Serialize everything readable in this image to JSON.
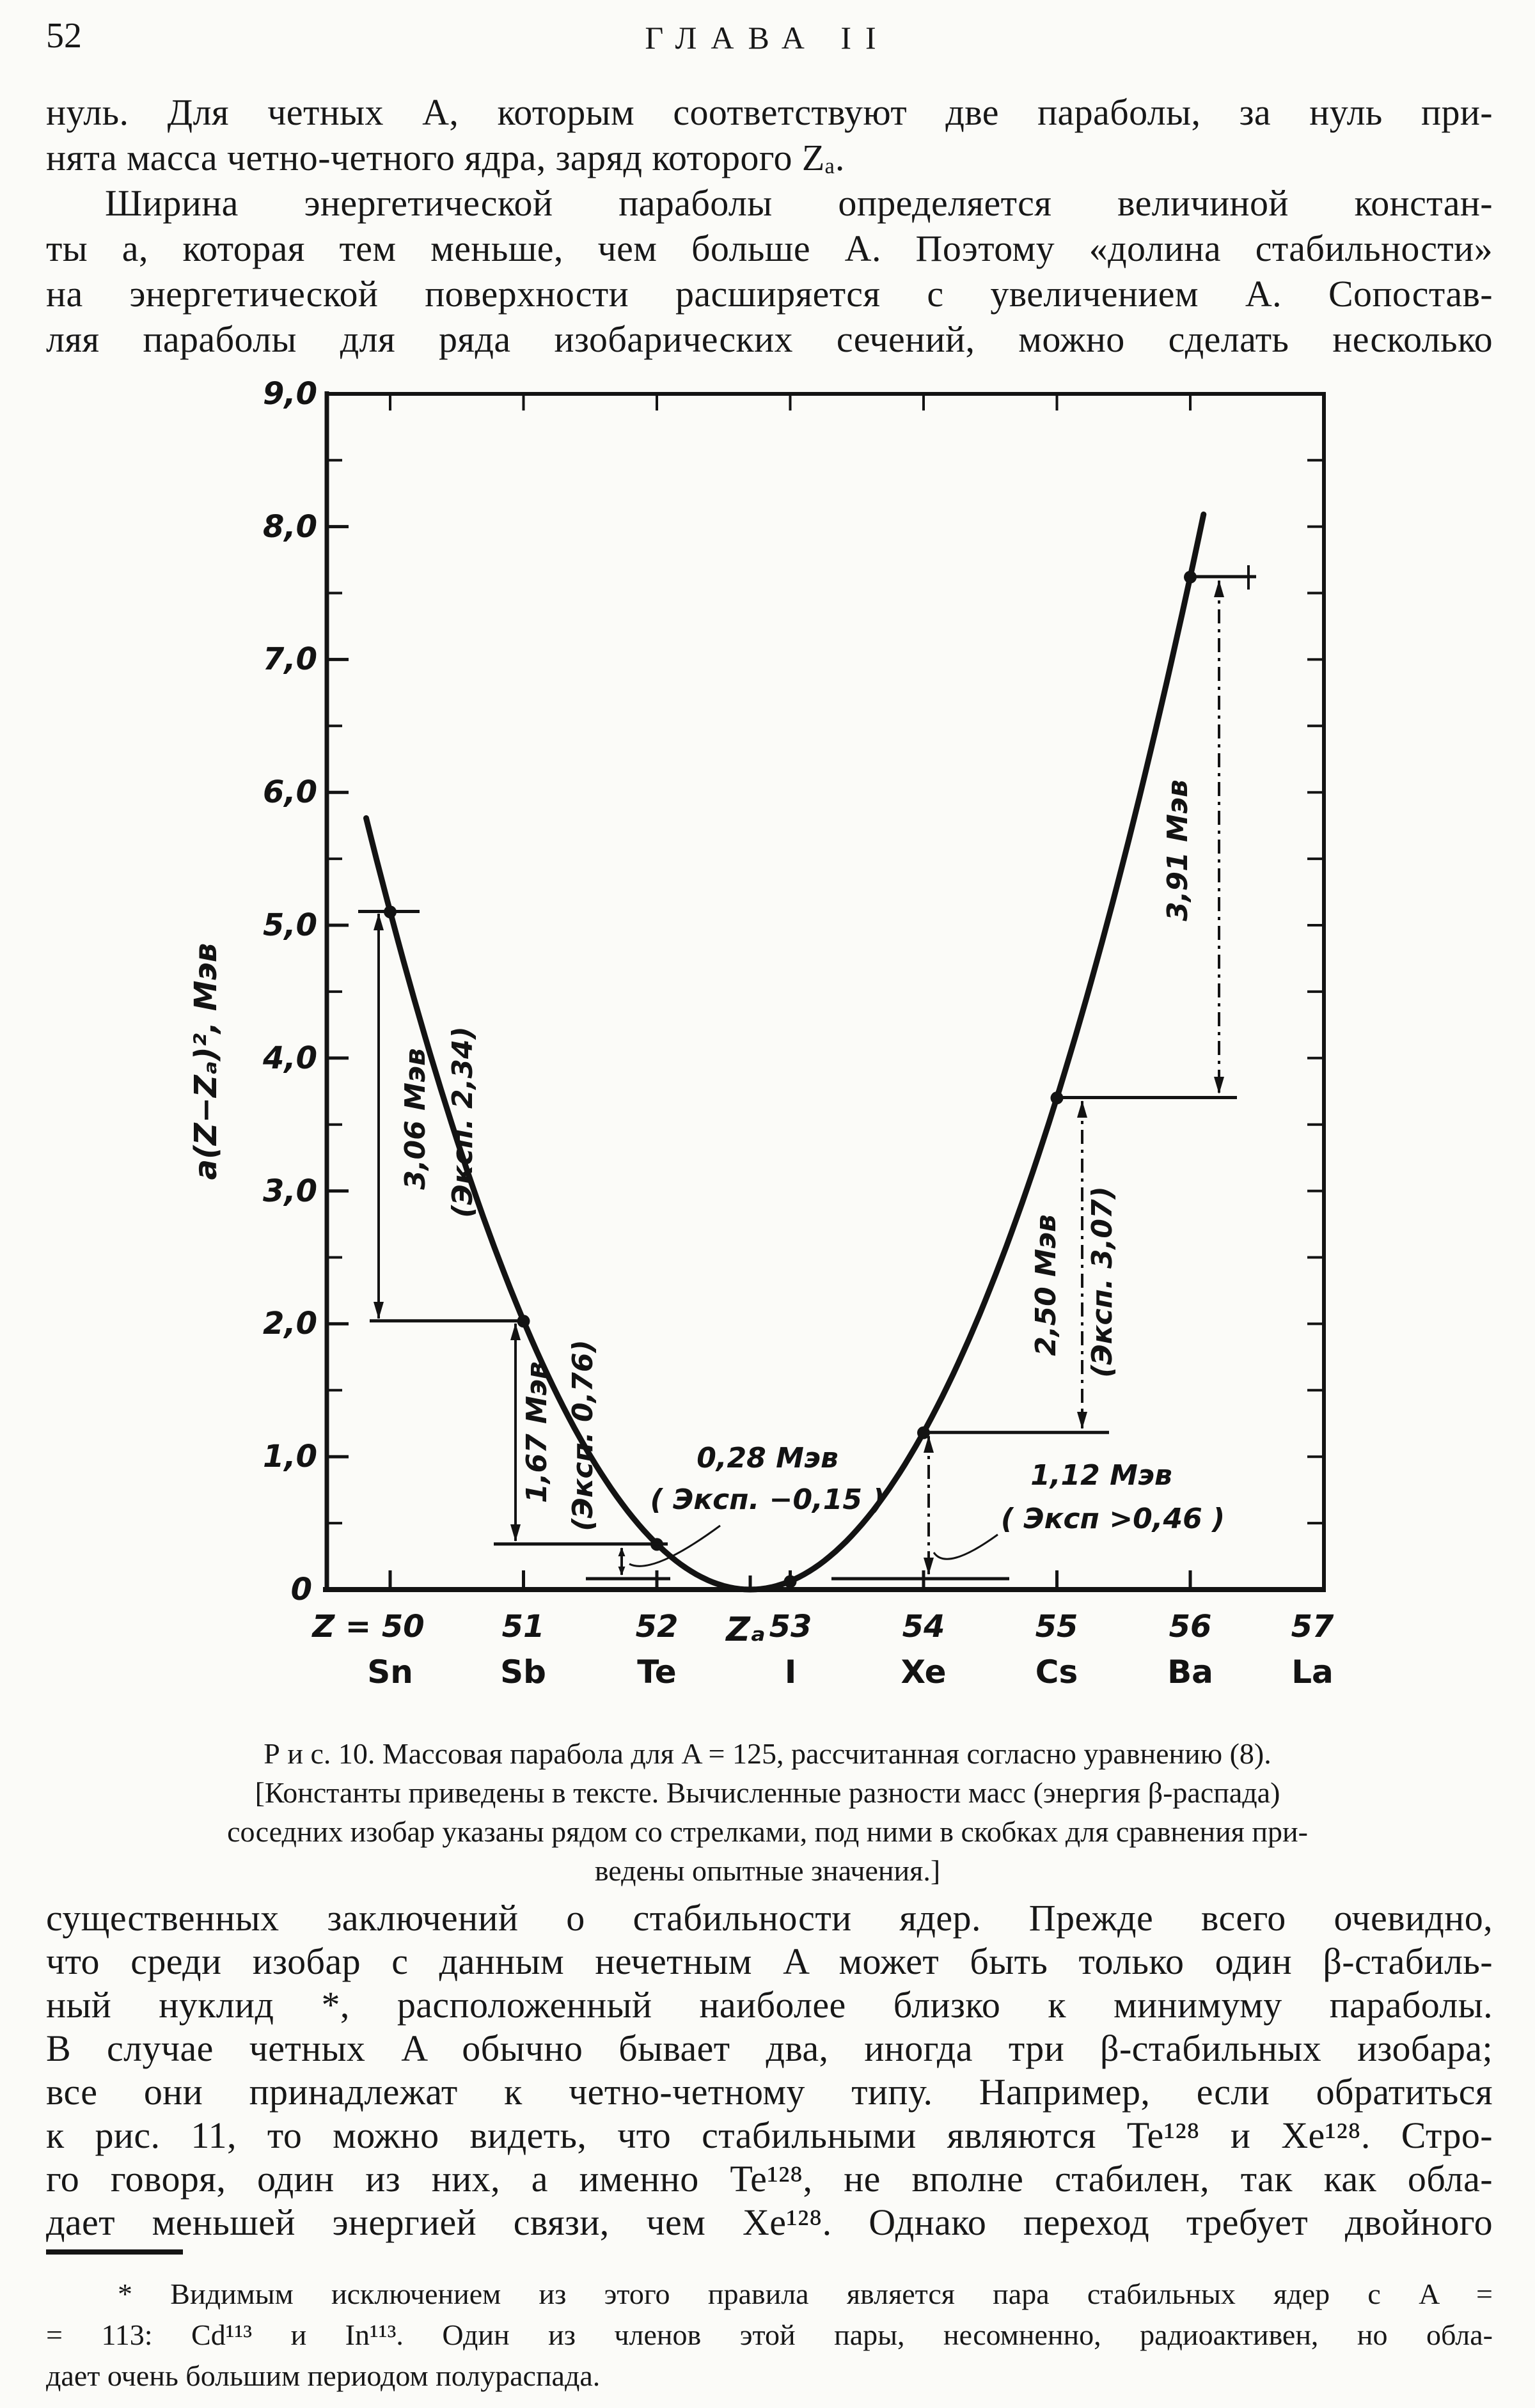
{
  "header": {
    "page_number": "52",
    "chapter_title": "ГЛАВА II"
  },
  "body": {
    "para1": [
      "нуль. Для четных A, которым соответствуют две параболы, за нуль при-",
      "нята масса четно-четного ядра, заряд которого Zₐ."
    ],
    "para2": [
      "Ширина энергетической параболы определяется величиной констан-",
      "ты a, которая тем меньше, чем больше A. Поэтому «долина стабильности»",
      "на энергетической поверхности расширяется с увеличением A. Сопостав-",
      "ляя параболы для ряда изобарических сечений, можно сделать несколько"
    ],
    "para3": [
      "существенных заключений о стабильности ядер. Прежде всего очевидно,",
      "что среди изобар с данным нечетным A может быть только один β-стабиль-",
      "ный нуклид *,  расположенный наиболее близко к минимуму параболы.",
      "В случае четных A обычно бывает два, иногда три β-стабильных изобара;",
      "все они принадлежат к четно-четному типу. Например, если обратиться",
      "к рис. 11, то можно видеть, что стабильными являются Te¹²⁸ и Xe¹²⁸. Стро-",
      "го говоря, один из них, а именно Te¹²⁸, не вполне стабилен, так как обла-",
      "дает меньшей энергией связи, чем Xe¹²⁸. Однако переход требует двойного"
    ]
  },
  "caption": [
    "Р и с. 10. Массовая парабола для A = 125, рассчитанная согласно уравнению (8).",
    "[Константы приведены в тексте. Вычисленные разности масс (энергия β-распада)",
    "соседних изобар указаны рядом со стрелками, под ними в скобках для сравнения при-",
    "ведены опытные значения.]"
  ],
  "footnote": [
    "* Видимым исключением из этого правила является пара стабильных ядер с A =",
    "= 113: Cd¹¹³ и In¹¹³. Один из членов этой пары, несомненно, радиоактивен, но обла-",
    "дает очень большим периодом полураспада."
  ],
  "figure": {
    "y_axis_label": "a(Z−Zₐ)², Мэв",
    "y_tick_labels": [
      "9,0",
      "8,0",
      "7,0",
      "6,0",
      "5,0",
      "4,0",
      "3,0",
      "2,0",
      "1,0",
      "0"
    ],
    "x_tick_labels": [
      "Z = 50",
      "51",
      "52",
      "53",
      "54",
      "55",
      "56",
      "57"
    ],
    "za_label": "Zₐ",
    "element_labels": [
      "Sn",
      "Sb",
      "Te",
      "I",
      "Xe",
      "Cs",
      "Ba",
      "La"
    ],
    "annotations": {
      "d306": [
        "3,06 Мэв",
        "(Эксп. 2,34)"
      ],
      "d167": [
        "1,67 Мэв",
        "(Эксп. 0,76)"
      ],
      "d028": [
        "0,28 Мэв",
        "( Эксп. −0,15 )"
      ],
      "d112": [
        "1,12 Мэв",
        "( Эксп >0,46 )"
      ],
      "d250": [
        "2,50 Мэв",
        "(Эксп. 3,07)"
      ],
      "d391": "3,91 Мэв"
    }
  },
  "chart_data": {
    "type": "line",
    "title": "Массовая парабола для A = 125 (рис. 10)",
    "xlabel": "Z",
    "ylabel": "a(Z−Zₐ)², Мэв",
    "xlim": [
      49.5,
      57
    ],
    "ylim": [
      0,
      9.0
    ],
    "grid": false,
    "parabola": {
      "a": 0.7,
      "Z_A": 52.7,
      "z_start": 49.82,
      "z_end": 56.1
    },
    "points": [
      {
        "element": "Sn",
        "Z": 50,
        "value": 5.1
      },
      {
        "element": "Sb",
        "Z": 51,
        "value": 2.02
      },
      {
        "element": "Te",
        "Z": 52,
        "value": 0.34
      },
      {
        "element": "I",
        "Z": 53,
        "value": 0.06
      },
      {
        "element": "Xe",
        "Z": 54,
        "value": 1.18
      },
      {
        "element": "Cs",
        "Z": 55,
        "value": 3.7
      },
      {
        "element": "Ba",
        "Z": 56,
        "value": 7.62
      }
    ],
    "deltas_mev": [
      3.06,
      1.67,
      0.28,
      1.12,
      2.5,
      3.91
    ],
    "deltas_exp_mev": [
      2.34,
      0.76,
      -0.15,
      0.46,
      3.07,
      null
    ]
  }
}
